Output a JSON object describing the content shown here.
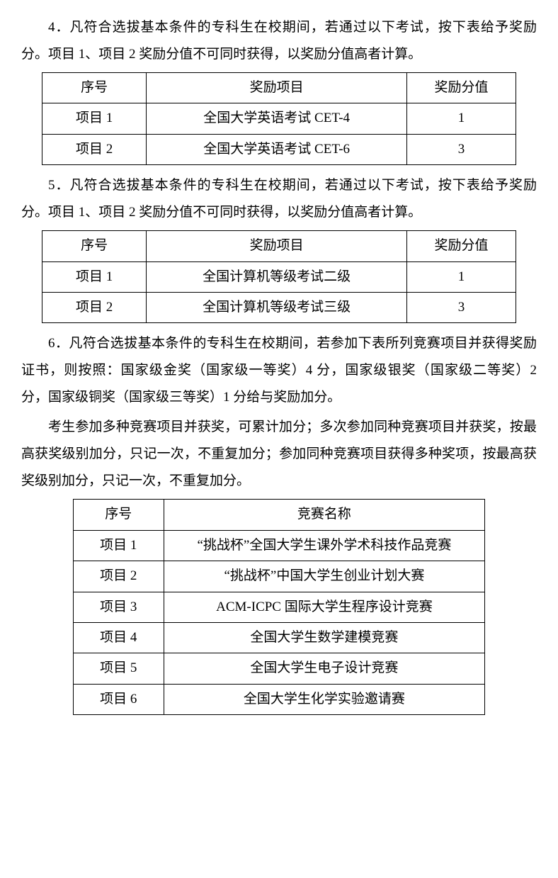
{
  "para4": "4．凡符合选拔基本条件的专科生在校期间，若通过以下考试，按下表给予奖励分。项目 1、项目 2 奖励分值不可同时获得，以奖励分值高者计算。",
  "table1": {
    "headers": {
      "seq": "序号",
      "item": "奖励项目",
      "score": "奖励分值"
    },
    "rows": [
      {
        "seq": "项目 1",
        "item": "全国大学英语考试 CET-4",
        "score": "1"
      },
      {
        "seq": "项目 2",
        "item": "全国大学英语考试 CET-6",
        "score": "3"
      }
    ]
  },
  "para5": "5．凡符合选拔基本条件的专科生在校期间，若通过以下考试，按下表给予奖励分。项目 1、项目 2 奖励分值不可同时获得，以奖励分值高者计算。",
  "table2": {
    "headers": {
      "seq": "序号",
      "item": "奖励项目",
      "score": "奖励分值"
    },
    "rows": [
      {
        "seq": "项目 1",
        "item": "全国计算机等级考试二级",
        "score": "1"
      },
      {
        "seq": "项目 2",
        "item": "全国计算机等级考试三级",
        "score": "3"
      }
    ]
  },
  "para6a": "6．凡符合选拔基本条件的专科生在校期间，若参加下表所列竞赛项目并获得奖励证书，则按照：国家级金奖（国家级一等奖）4 分，国家级银奖（国家级二等奖）2 分，国家级铜奖（国家级三等奖）1 分给与奖励加分。",
  "para6b": "考生参加多种竞赛项目并获奖，可累计加分；多次参加同种竞赛项目并获奖，按最高获奖级别加分，只记一次，不重复加分；参加同种竞赛项目获得多种奖项，按最高获奖级别加分，只记一次，不重复加分。",
  "table3": {
    "headers": {
      "seq": "序号",
      "name": "竞赛名称"
    },
    "rows": [
      {
        "seq": "项目 1",
        "name": "“挑战杯”全国大学生课外学术科技作品竞赛"
      },
      {
        "seq": "项目 2",
        "name": "“挑战杯”中国大学生创业计划大赛"
      },
      {
        "seq": "项目 3",
        "name": "ACM-ICPC 国际大学生程序设计竞赛"
      },
      {
        "seq": "项目 4",
        "name": "全国大学生数学建模竞赛"
      },
      {
        "seq": "项目 5",
        "name": "全国大学生电子设计竞赛"
      },
      {
        "seq": "项目 6",
        "name": "全国大学生化学实验邀请赛"
      }
    ]
  }
}
